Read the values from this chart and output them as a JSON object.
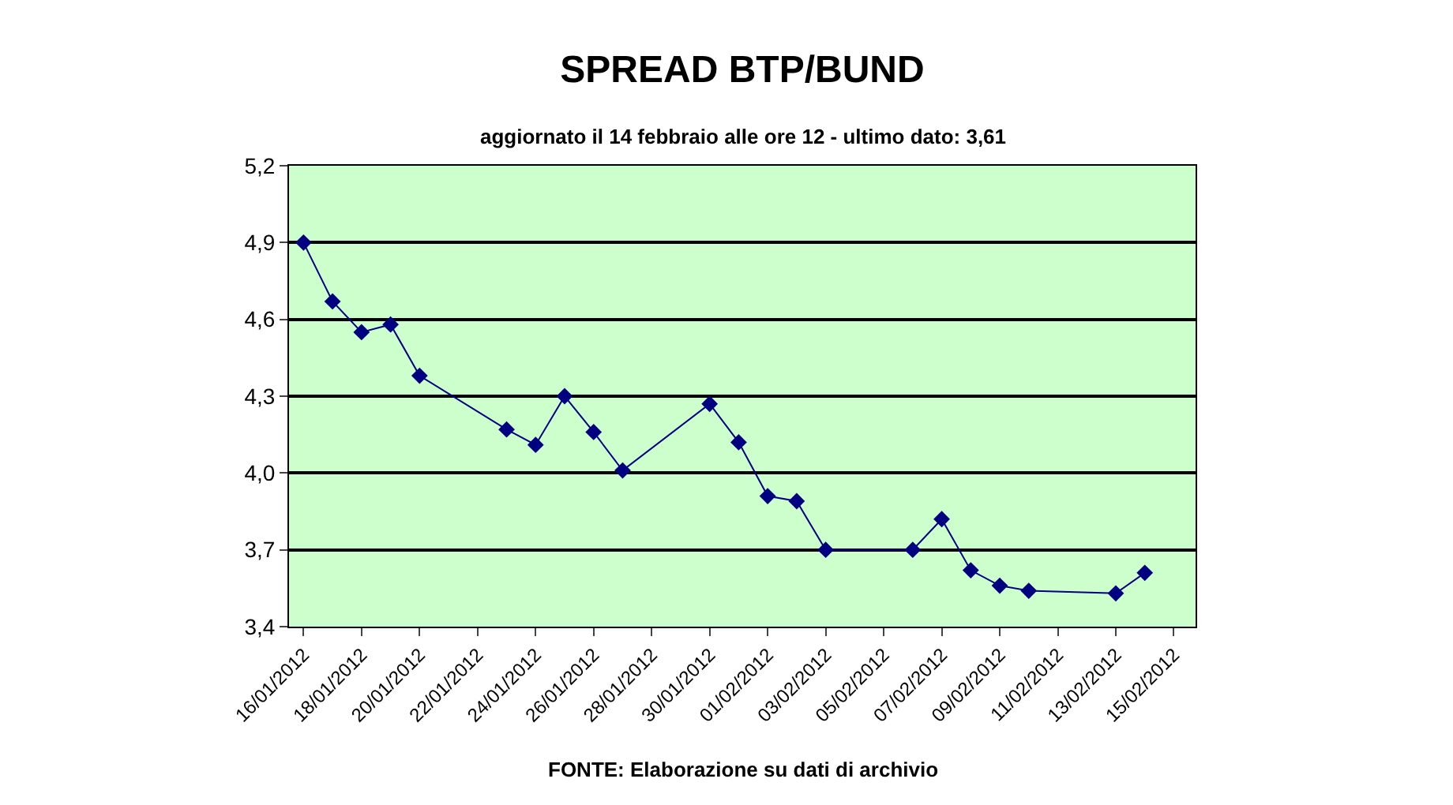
{
  "chart_data": {
    "type": "line",
    "title": "SPREAD BTP/BUND",
    "subtitle": "aggiornato il 14 febbraio alle ore 12 - ultimo dato: 3,61",
    "annotations": [
      "FONTE: Elaborazione su dati di archivio"
    ],
    "x": [
      "2012-01-16",
      "2012-01-17",
      "2012-01-18",
      "2012-01-19",
      "2012-01-20",
      "2012-01-23",
      "2012-01-24",
      "2012-01-25",
      "2012-01-26",
      "2012-01-27",
      "2012-01-30",
      "2012-01-31",
      "2012-02-01",
      "2012-02-02",
      "2012-02-03",
      "2012-02-06",
      "2012-02-07",
      "2012-02-08",
      "2012-02-09",
      "2012-02-10",
      "2012-02-13",
      "2012-02-14"
    ],
    "series": [
      {
        "color": "#000080",
        "values": [
          4.9,
          4.67,
          4.55,
          4.58,
          4.38,
          4.17,
          4.11,
          4.3,
          4.16,
          4.01,
          4.27,
          4.12,
          3.91,
          3.89,
          3.7,
          3.7,
          3.82,
          3.62,
          3.56,
          3.54,
          3.53,
          3.61
        ]
      }
    ],
    "xlim": [
      "2012-01-15T12:00",
      "2012-02-15T18:00"
    ],
    "xticks": [
      {
        "value": "2012-01-16",
        "label": "16/01/2012"
      },
      {
        "value": "2012-01-18",
        "label": "18/01/2012"
      },
      {
        "value": "2012-01-20",
        "label": "20/01/2012"
      },
      {
        "value": "2012-01-22",
        "label": "22/01/2012"
      },
      {
        "value": "2012-01-24",
        "label": "24/01/2012"
      },
      {
        "value": "2012-01-26",
        "label": "26/01/2012"
      },
      {
        "value": "2012-01-28",
        "label": "28/01/2012"
      },
      {
        "value": "2012-01-30",
        "label": "30/01/2012"
      },
      {
        "value": "2012-02-01",
        "label": "01/02/2012"
      },
      {
        "value": "2012-02-03",
        "label": "03/02/2012"
      },
      {
        "value": "2012-02-05",
        "label": "05/02/2012"
      },
      {
        "value": "2012-02-07",
        "label": "07/02/2012"
      },
      {
        "value": "2012-02-09",
        "label": "09/02/2012"
      },
      {
        "value": "2012-02-11",
        "label": "11/02/2012"
      },
      {
        "value": "2012-02-13",
        "label": "13/02/2012"
      },
      {
        "value": "2012-02-15",
        "label": "15/02/2012"
      }
    ],
    "ylim": [
      3.4,
      5.2
    ],
    "yticks": [
      {
        "value": 3.4,
        "label": "3,4"
      },
      {
        "value": 3.7,
        "label": "3,7"
      },
      {
        "value": 4.0,
        "label": "4,0"
      },
      {
        "value": 4.3,
        "label": "4,3"
      },
      {
        "value": 4.6,
        "label": "4,6"
      },
      {
        "value": 4.9,
        "label": "4,9"
      },
      {
        "value": 5.2,
        "label": "5,2"
      }
    ],
    "grid": "y",
    "marker": "diamond",
    "line_style": "solid"
  }
}
